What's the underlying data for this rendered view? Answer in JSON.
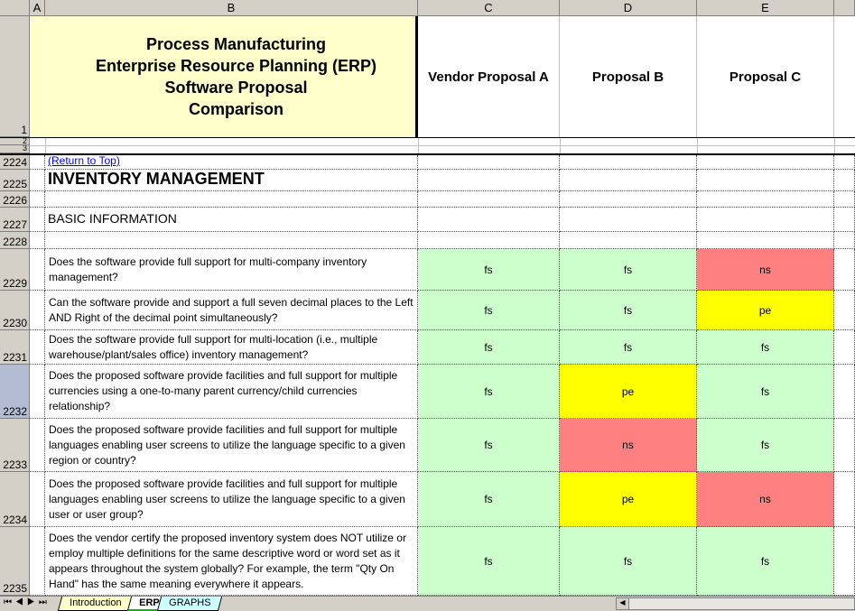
{
  "columns": [
    "A",
    "B",
    "C",
    "D",
    "E"
  ],
  "header": {
    "title_lines": [
      "Process Manufacturing",
      "Enterprise Resource Planning (ERP)",
      "Software Proposal",
      "Comparison"
    ],
    "vendors": [
      "Vendor Proposal A",
      "Proposal B",
      "Proposal C"
    ],
    "row_number": "1"
  },
  "hidden_rows": [
    "2",
    "3"
  ],
  "section_rows": [
    {
      "row": "2224",
      "text": "(Return to Top)",
      "style": "link"
    },
    {
      "row": "2225",
      "text": "INVENTORY MANAGEMENT",
      "style": "h1"
    },
    {
      "row": "2226",
      "text": "",
      "style": "blank"
    },
    {
      "row": "2227",
      "text": "BASIC INFORMATION",
      "style": "h2"
    },
    {
      "row": "2228",
      "text": "",
      "style": "blank"
    }
  ],
  "questions": [
    {
      "row": "2229",
      "text": "Does the software provide full support for multi-company inventory management?",
      "values": [
        "fs",
        "fs",
        "ns"
      ]
    },
    {
      "row": "2230",
      "text": "Can the software provide and support a full seven decimal places to the Left AND Right of the decimal point simultaneously?",
      "values": [
        "fs",
        "fs",
        "pe"
      ]
    },
    {
      "row": "2231",
      "text": "Does the software provide full support for multi-location (i.e., multiple warehouse/plant/sales office) inventory management?",
      "values": [
        "fs",
        "fs",
        "fs"
      ]
    },
    {
      "row": "2232",
      "text": "Does the proposed software provide facilities and full support for multiple currencies using a one-to-many parent currency/child currencies relationship?",
      "values": [
        "fs",
        "pe",
        "fs"
      ]
    },
    {
      "row": "2233",
      "text": "Does the proposed software provide facilities and full support for multiple languages enabling user screens to utilize the language specific to a given region or country?",
      "values": [
        "fs",
        "ns",
        "fs"
      ]
    },
    {
      "row": "2234",
      "text": "Does the proposed software provide facilities and full support for multiple languages enabling user screens to utilize the language specific to a given user or user group?",
      "values": [
        "fs",
        "pe",
        "ns"
      ]
    },
    {
      "row": "2235",
      "text": "Does the vendor certify the proposed inventory system does NOT utilize or employ multiple definitions for the same descriptive word or word set as it appears throughout the system globally? For example, the term \"Qty On Hand\" has the same meaning everywhere it appears.",
      "values": [
        "fs",
        "fs",
        "fs"
      ]
    }
  ],
  "status_colors": {
    "fs": "#ccffcc",
    "pe": "#ffff00",
    "ns": "#ff8080"
  },
  "title_fill": "#ffffcc",
  "sheet_tabs": [
    {
      "label": "Introduction",
      "color": "#ffffcc",
      "active": false
    },
    {
      "label": "ERP",
      "color": "#ffffff",
      "active": true
    },
    {
      "label": "GRAPHS",
      "color": "#ccffff",
      "active": false
    }
  ]
}
